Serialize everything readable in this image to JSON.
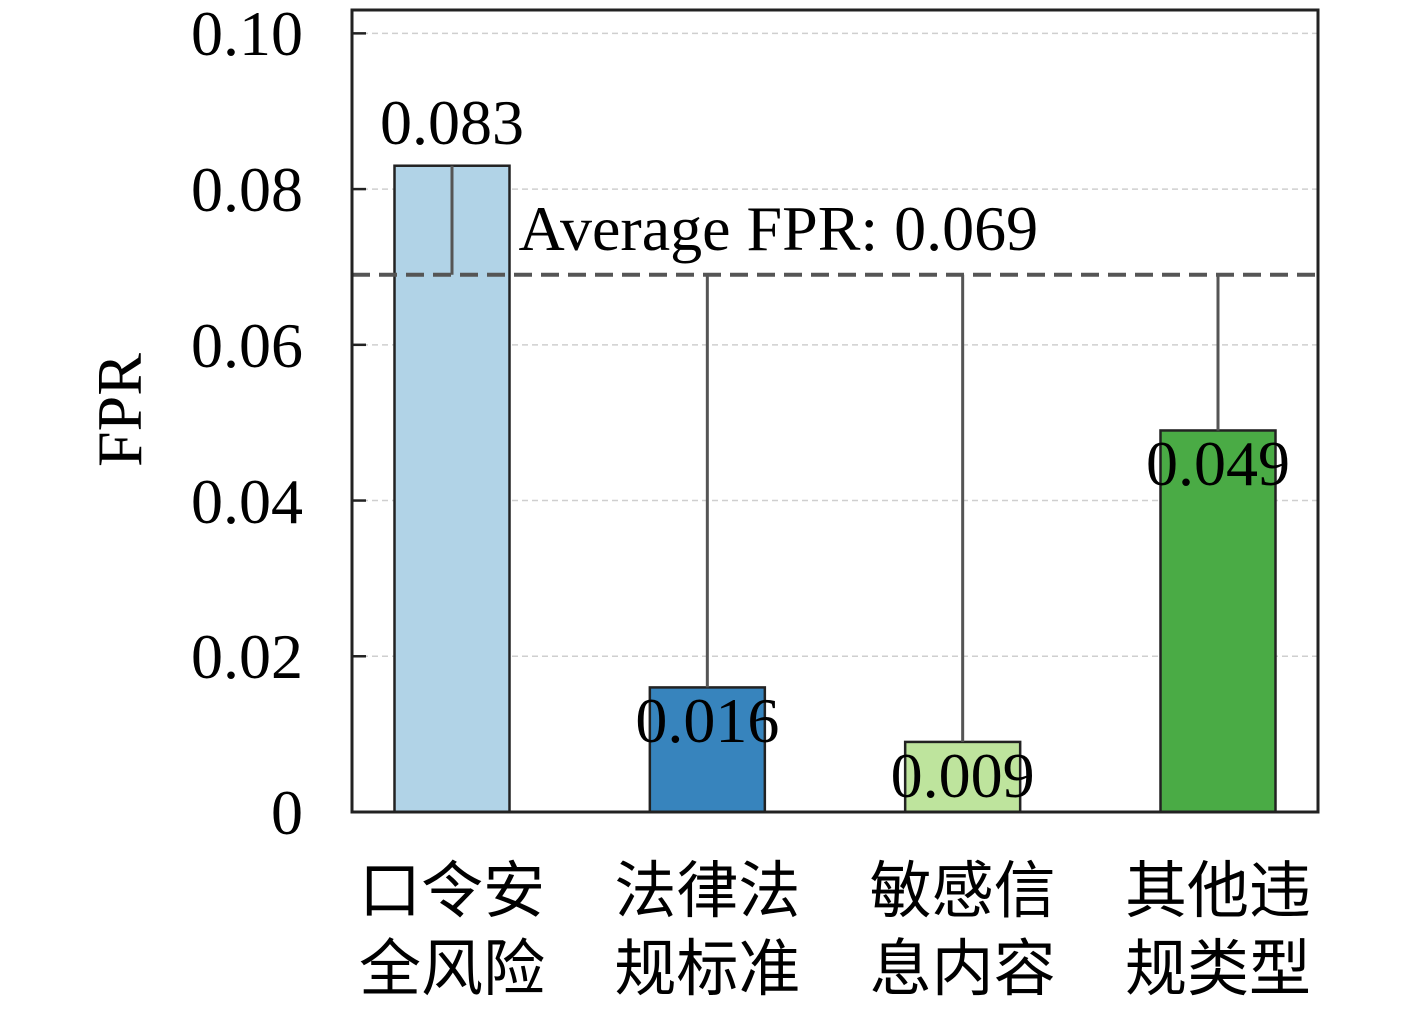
{
  "chart_data": {
    "type": "bar",
    "categories": [
      "口令安全风险",
      "法律法规标准",
      "敏感信息内容",
      "其他违规类型"
    ],
    "values": [
      0.083,
      0.016,
      0.009,
      0.049
    ],
    "colors": [
      "#b1d3e7",
      "#3784bd",
      "#bee49d",
      "#4aab45"
    ],
    "ylabel": "FPR",
    "ylim": [
      0,
      0.103
    ],
    "yticks": [
      0,
      0.02,
      0.04,
      0.06,
      0.08,
      0.1
    ],
    "ytick_labels": [
      "0",
      "0.02",
      "0.04",
      "0.06",
      "0.08",
      "0.10"
    ],
    "grid": true,
    "average": {
      "value": 0.069,
      "label": "Average FPR: 0.069",
      "color": "#555555"
    }
  }
}
